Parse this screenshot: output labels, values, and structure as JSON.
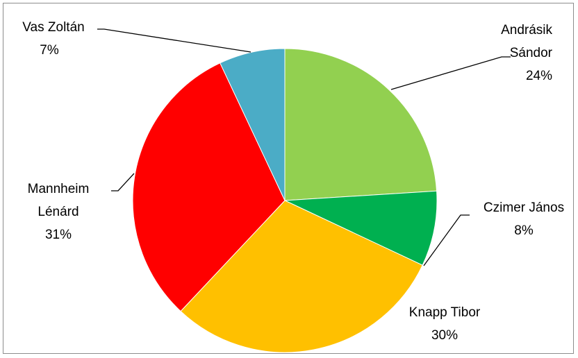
{
  "chart_data": {
    "type": "pie",
    "title": "",
    "start_angle_deg": 90,
    "direction": "clockwise",
    "slices": [
      {
        "name": "Andrásik Sándor",
        "label_lines": [
          "Andrásik",
          "Sándor"
        ],
        "value": 24,
        "percent_label": "24%",
        "color": "#92D050"
      },
      {
        "name": "Czimer János",
        "label_lines": [
          "Czimer János"
        ],
        "value": 8,
        "percent_label": "8%",
        "color": "#00B050"
      },
      {
        "name": "Knapp Tibor",
        "label_lines": [
          "Knapp Tibor"
        ],
        "value": 30,
        "percent_label": "30%",
        "color": "#FFC000"
      },
      {
        "name": "Mannheim Lénárd",
        "label_lines": [
          "Mannheim",
          "Lénárd"
        ],
        "value": 31,
        "percent_label": "31%",
        "color": "#FF0000"
      },
      {
        "name": "Vas Zoltán",
        "label_lines": [
          "Vas Zoltán"
        ],
        "value": 7,
        "percent_label": "7%",
        "color": "#4BACC6"
      }
    ]
  }
}
